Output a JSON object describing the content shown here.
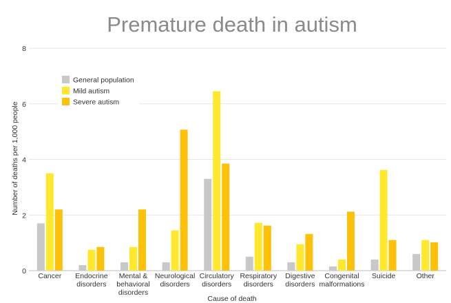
{
  "chart_data": {
    "type": "bar",
    "title": "Premature death in autism",
    "xlabel": "Cause of death",
    "ylabel": "Number of deaths per 1,000 people",
    "ylim": [
      0,
      8
    ],
    "yticks": [
      0,
      2,
      4,
      6,
      8
    ],
    "grid": true,
    "legend_position": "top-left",
    "categories": [
      [
        "Cancer"
      ],
      [
        "Endocrine",
        "disorders"
      ],
      [
        "Mental &",
        "behavioral",
        "disorders"
      ],
      [
        "Neurological",
        "disorders"
      ],
      [
        "Circulatory",
        "disorders"
      ],
      [
        "Respiratory",
        "disorders"
      ],
      [
        "Digestive",
        "disorders"
      ],
      [
        "Congenital",
        "malformations"
      ],
      [
        "Suicide"
      ],
      [
        "Other"
      ]
    ],
    "series": [
      {
        "name": "General population",
        "color": "#c8c8c8",
        "values": [
          1.7,
          0.2,
          0.3,
          0.3,
          3.3,
          0.5,
          0.3,
          0.15,
          0.4,
          0.6
        ]
      },
      {
        "name": "Mild autism",
        "color": "#ffe82e",
        "values": [
          3.5,
          0.75,
          0.85,
          1.45,
          6.45,
          1.72,
          0.95,
          0.4,
          3.62,
          1.1
        ]
      },
      {
        "name": "Severe autism",
        "color": "#fdc10a",
        "values": [
          2.2,
          0.85,
          2.2,
          5.07,
          3.85,
          1.62,
          1.32,
          2.12,
          1.1,
          1.02
        ]
      }
    ]
  }
}
